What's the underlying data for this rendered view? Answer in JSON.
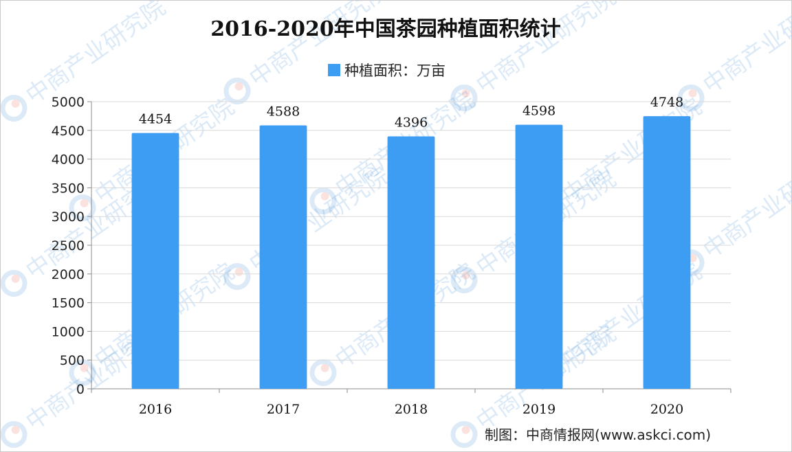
{
  "chart_data": {
    "type": "bar",
    "title": "2016-2020年中国茶园种植面积统计",
    "categories": [
      "2016",
      "2017",
      "2018",
      "2019",
      "2020"
    ],
    "series": [
      {
        "name": "种植面积：万亩",
        "values": [
          4454,
          4588,
          4396,
          4598,
          4748
        ],
        "color": "#3d9df3"
      }
    ],
    "xlabel": "",
    "ylabel": "",
    "ylim": [
      0,
      5000
    ],
    "yticks": [
      0,
      500,
      1000,
      1500,
      2000,
      2500,
      3000,
      3500,
      4000,
      4500,
      5000
    ],
    "grid": true,
    "legend_position": "top-center",
    "data_labels": true
  },
  "source": "制图：中商情报网(www.askci.com)",
  "watermark": "中商产业研究院",
  "colors": {
    "bar": "#3d9df3",
    "grid": "#d9d9d9",
    "axis": "#8c8c8c"
  }
}
